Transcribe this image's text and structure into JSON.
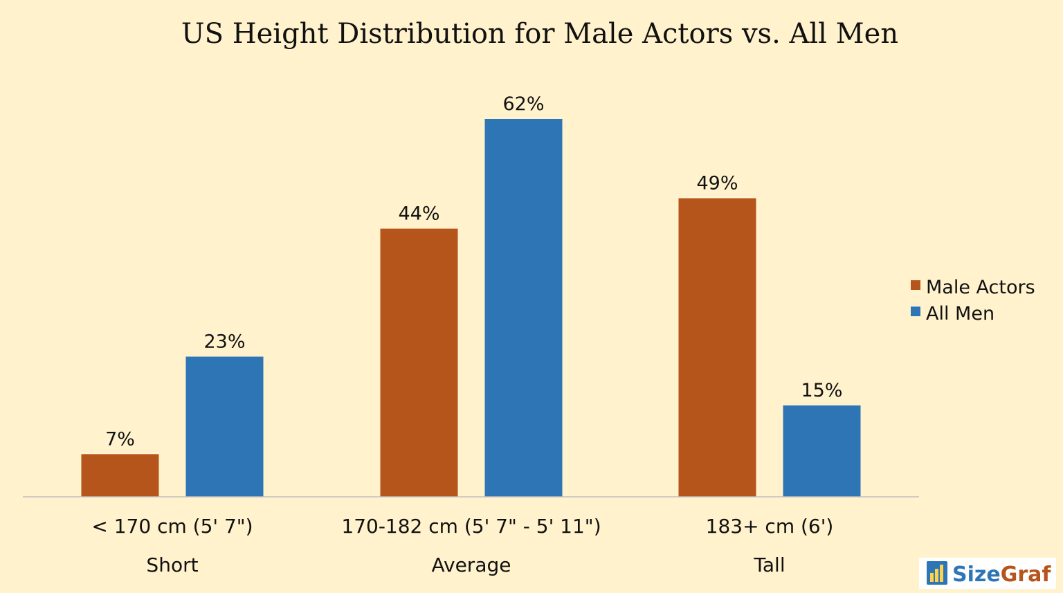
{
  "colors": {
    "background": "#fff2cc",
    "male_actors": "#b5541b",
    "all_men": "#2e75b6",
    "axis": "#bfbfbf",
    "logo_blue": "#2e75b6",
    "logo_orange": "#b5541b"
  },
  "chart_data": {
    "type": "bar",
    "title": "US Height Distribution for Male Actors vs. All Men",
    "categories": [
      "< 170 cm (5' 7\")",
      "170-182 cm (5' 7\" - 5' 11\")",
      "183+ cm (6')"
    ],
    "category_groups": [
      "Short",
      "Average",
      "Tall"
    ],
    "series": [
      {
        "name": "Male Actors",
        "values": [
          7,
          44,
          49
        ],
        "labels": [
          "7%",
          "44%",
          "49%"
        ],
        "color": "#b5541b"
      },
      {
        "name": "All Men",
        "values": [
          23,
          62,
          15
        ],
        "labels": [
          "23%",
          "62%",
          "15%"
        ],
        "color": "#2e75b6"
      }
    ],
    "ylim": [
      0,
      70
    ],
    "unit": "%",
    "grid": false,
    "legend": "right"
  },
  "logo": {
    "icon": "bar-chart-icon",
    "part1": "Size",
    "part2": "Graf"
  }
}
